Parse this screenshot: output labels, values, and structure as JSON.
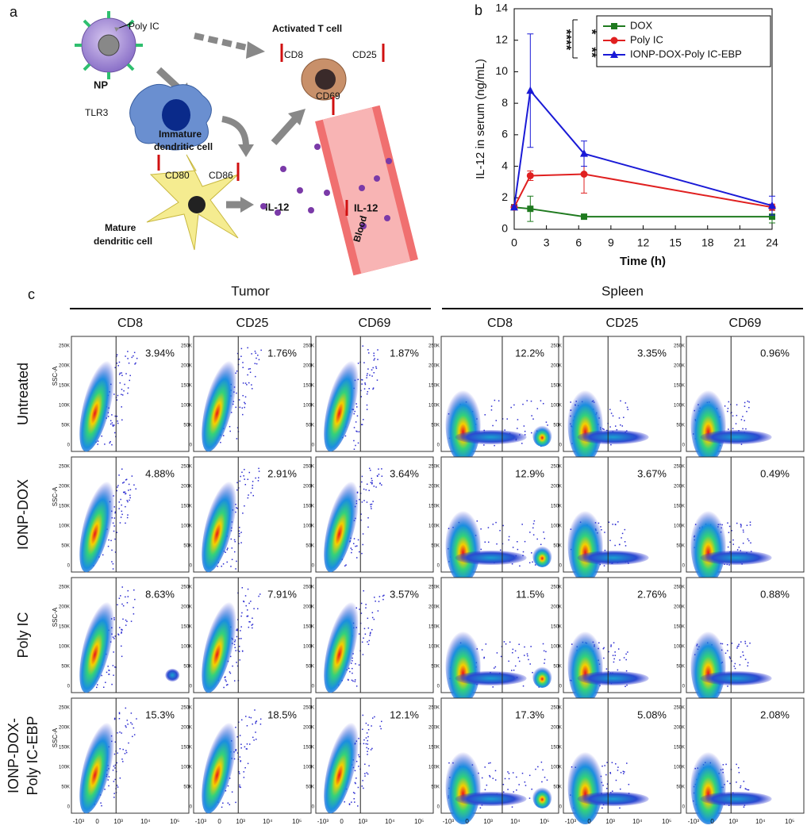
{
  "diagram": {
    "panel_label": "a",
    "poly_ic": "Poly IC",
    "np": "NP",
    "activated_t_cell": "Activated T cell",
    "t_cd8": "CD8",
    "t_cd25": "CD25",
    "t_cd69": "CD69",
    "tlr3": "TLR3",
    "immature_dc": [
      "Immature",
      "dendritic cell"
    ],
    "cd80": "CD80",
    "cd86": "CD86",
    "mature_dc": [
      "Mature",
      "dendritic cell"
    ],
    "il12": "IL-12",
    "il12_blood": "IL-12",
    "blood": "Blood"
  },
  "chart_data": {
    "type": "line",
    "panel_label": "b",
    "ylabel": "IL-12 in serum (ng/mL)",
    "xlabel": "Time (h)",
    "x": [
      0,
      1.5,
      6.5,
      24
    ],
    "xlim": [
      0,
      24
    ],
    "xticks": [
      0,
      3,
      6,
      9,
      12,
      15,
      18,
      21,
      24
    ],
    "ylim": [
      0,
      14
    ],
    "yticks": [
      0,
      2,
      4,
      6,
      8,
      10,
      12,
      14
    ],
    "legend": "upper right",
    "series": [
      {
        "name": "DOX",
        "color": "#1f7a1f",
        "marker": "square",
        "values": [
          1.4,
          1.3,
          0.8,
          0.8
        ],
        "errors": [
          0.1,
          0.8,
          0.1,
          0.4
        ]
      },
      {
        "name": "Poly IC",
        "color": "#e02020",
        "marker": "circle",
        "values": [
          1.4,
          3.4,
          3.5,
          1.4
        ],
        "errors": [
          0.1,
          0.3,
          1.2,
          0.2
        ]
      },
      {
        "name": "IONP-DOX-Poly IC-EBP",
        "color": "#1a1ad6",
        "marker": "triangle",
        "values": [
          1.4,
          8.8,
          4.8,
          1.5
        ],
        "errors": [
          0.1,
          3.6,
          0.8,
          0.6
        ]
      }
    ],
    "annotations": [
      "****",
      "*",
      "**"
    ]
  },
  "flow": {
    "panel_label": "c",
    "groups": [
      "Tumor",
      "Spleen"
    ],
    "columns": [
      "CD8",
      "CD25",
      "CD69",
      "CD8",
      "CD25",
      "CD69"
    ],
    "rows": [
      [
        "Untreated"
      ],
      [
        "IONP-DOX"
      ],
      [
        "Poly IC"
      ],
      [
        "IONP-DOX-",
        "Poly IC-EBP"
      ]
    ],
    "y_axis_label": "SSC-A",
    "y_tick_labels": [
      "250K",
      "200K",
      "150K",
      "100K",
      "50K",
      "0"
    ],
    "x_tick_labels": [
      "-10³",
      "0",
      "10³",
      "10⁴",
      "10⁵"
    ],
    "percentages": [
      [
        "3.94%",
        "1.76%",
        "1.87%",
        "12.2%",
        "3.35%",
        "0.96%"
      ],
      [
        "4.88%",
        "2.91%",
        "3.64%",
        "12.9%",
        "3.67%",
        "0.49%"
      ],
      [
        "8.63%",
        "7.91%",
        "3.57%",
        "11.5%",
        "2.76%",
        "0.88%"
      ],
      [
        "15.3%",
        "18.5%",
        "12.1%",
        "17.3%",
        "5.08%",
        "2.08%"
      ]
    ]
  }
}
